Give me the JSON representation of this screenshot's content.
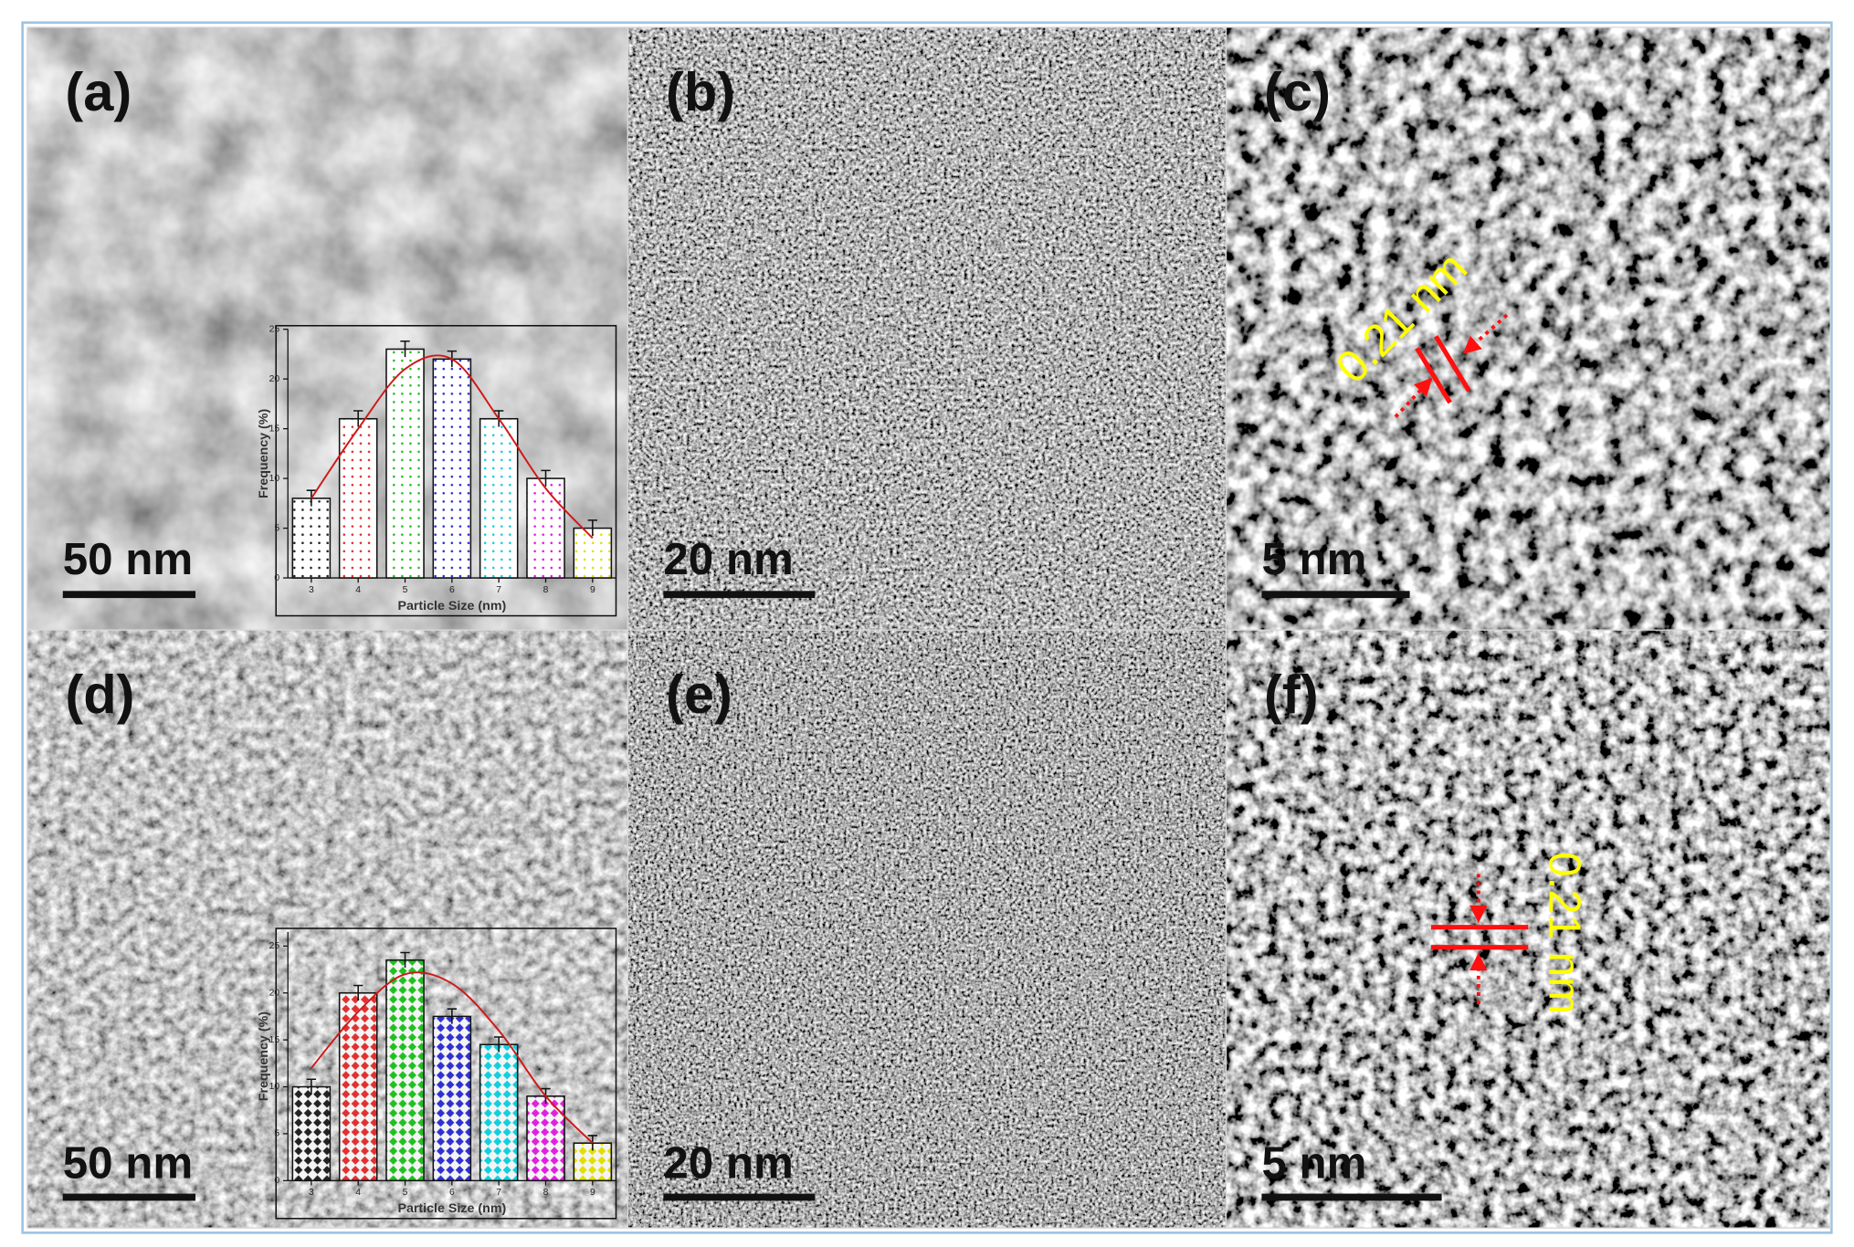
{
  "panels": [
    {
      "label": "(a)",
      "scale_bar": "50 nm",
      "inset": {
        "type": "bar",
        "x_label": "Particle Size (nm)",
        "y_label": "Frequency (%)",
        "categories": [
          3,
          4,
          5,
          6,
          7,
          8,
          9
        ],
        "values": [
          8,
          16,
          23,
          22,
          16,
          10,
          5
        ],
        "errors": [
          0.8,
          0.8,
          0.8,
          0.8,
          0.8,
          0.8,
          0.8
        ],
        "colors": [
          "#222222",
          "#e03030",
          "#20c020",
          "#3030d0",
          "#10d0e0",
          "#e020e0",
          "#e0e000"
        ],
        "fit": {
          "color": "#d01818",
          "values": [
            8,
            15,
            21,
            22,
            16,
            9,
            4
          ]
        },
        "ylim": [
          0,
          25
        ],
        "yticks": [
          0,
          5,
          10,
          15,
          20,
          25
        ]
      }
    },
    {
      "label": "(b)",
      "scale_bar": "20 nm"
    },
    {
      "label": "(c)",
      "scale_bar": "5 nm",
      "annotation": "0.21 nm"
    },
    {
      "label": "(d)",
      "scale_bar": "50 nm",
      "inset": {
        "type": "bar",
        "x_label": "Particle Size (nm)",
        "y_label": "Frequency (%)",
        "categories": [
          3,
          4,
          5,
          6,
          7,
          8,
          9
        ],
        "values": [
          10,
          20,
          23.5,
          17.5,
          14.5,
          9,
          4
        ],
        "errors": [
          0.8,
          0.8,
          0.8,
          0.8,
          0.8,
          0.8,
          0.8
        ],
        "colors": [
          "#222222",
          "#e03030",
          "#20c020",
          "#3030d0",
          "#10d0e0",
          "#e020e0",
          "#e0e000"
        ],
        "fit": {
          "color": "#d01818",
          "values": [
            12,
            18,
            22,
            21,
            16,
            9,
            4
          ]
        },
        "ylim": [
          0,
          26.5
        ],
        "yticks": [
          0,
          5,
          10,
          15,
          20,
          25
        ]
      }
    },
    {
      "label": "(e)",
      "scale_bar": "20 nm"
    },
    {
      "label": "(f)",
      "scale_bar": "5 nm",
      "annotation": "0.21 nm"
    }
  ]
}
